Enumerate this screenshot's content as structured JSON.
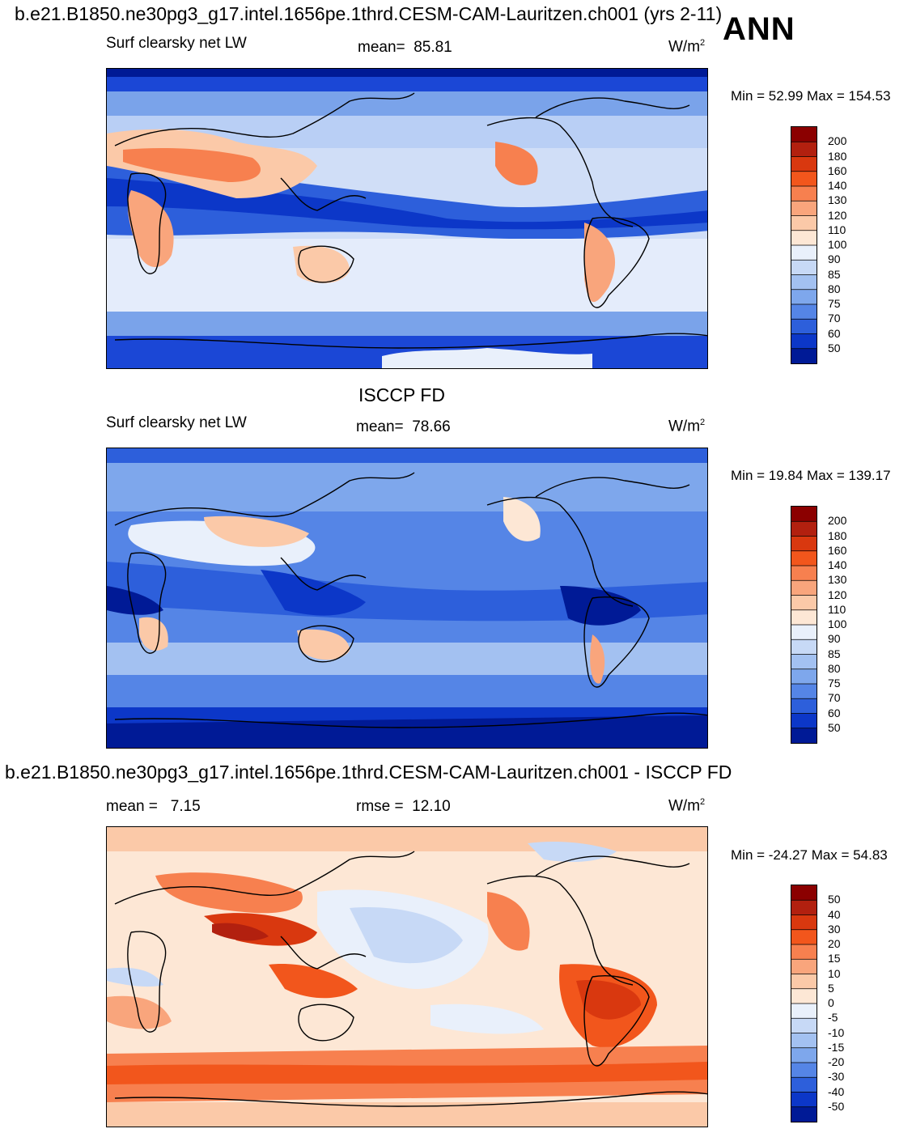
{
  "header": {
    "title": "b.e21.B1850.ne30pg3_g17.intel.1656pe.1thrd.CESM-CAM-Lauritzen.ch001 (yrs 2-11)",
    "season": "ANN"
  },
  "panels": [
    {
      "id": "model",
      "variable": "Surf clearsky net LW",
      "stat_label": "mean=",
      "stat_value": "85.81",
      "units": "W/m",
      "units_sup": "2",
      "minmax": "Min =  52.99 Max = 154.53",
      "palette": "sequential",
      "cbar_labels": [
        "200",
        "180",
        "160",
        "140",
        "130",
        "120",
        "110",
        "100",
        "90",
        "85",
        "80",
        "75",
        "70",
        "60",
        "50"
      ],
      "colors": [
        "#8b0000",
        "#b2200f",
        "#d9380f",
        "#f2561c",
        "#f7804f",
        "#f9a57c",
        "#fbc9a8",
        "#fde7d5",
        "#e9f0fb",
        "#c7d9f6",
        "#a3c1f1",
        "#7ea7ec",
        "#5585e6",
        "#2d5fdb",
        "#0c37c8",
        "#001a96"
      ]
    },
    {
      "id": "obs",
      "heading": "ISCCP FD",
      "variable": "Surf clearsky net LW",
      "stat_label": "mean=",
      "stat_value": "78.66",
      "units": "W/m",
      "units_sup": "2",
      "minmax": "Min =  19.84 Max = 139.17",
      "palette": "sequential",
      "cbar_labels": [
        "200",
        "180",
        "160",
        "140",
        "130",
        "120",
        "110",
        "100",
        "90",
        "85",
        "80",
        "75",
        "70",
        "60",
        "50"
      ],
      "colors": [
        "#8b0000",
        "#b2200f",
        "#d9380f",
        "#f2561c",
        "#f7804f",
        "#f9a57c",
        "#fbc9a8",
        "#fde7d5",
        "#e9f0fb",
        "#c7d9f6",
        "#a3c1f1",
        "#7ea7ec",
        "#5585e6",
        "#2d5fdb",
        "#0c37c8",
        "#001a96"
      ]
    },
    {
      "id": "diff",
      "heading": "b.e21.B1850.ne30pg3_g17.intel.1656pe.1thrd.CESM-CAM-Lauritzen.ch001 - ISCCP FD",
      "stat_label": "mean =",
      "stat_value": "7.15",
      "stat2_label": "rmse =",
      "stat2_value": "12.10",
      "units": "W/m",
      "units_sup": "2",
      "minmax": "Min = -24.27 Max =  54.83",
      "palette": "diverging",
      "cbar_labels": [
        "50",
        "40",
        "30",
        "20",
        "15",
        "10",
        "5",
        "0",
        "-5",
        "-10",
        "-15",
        "-20",
        "-30",
        "-40",
        "-50"
      ],
      "colors": [
        "#8b0000",
        "#b2200f",
        "#d9380f",
        "#f2561c",
        "#f7804f",
        "#f9a57c",
        "#fbc9a8",
        "#fde7d5",
        "#e9f0fb",
        "#c7d9f6",
        "#a3c1f1",
        "#7ea7ec",
        "#5585e6",
        "#2d5fdb",
        "#0c37c8",
        "#001a96"
      ]
    }
  ]
}
